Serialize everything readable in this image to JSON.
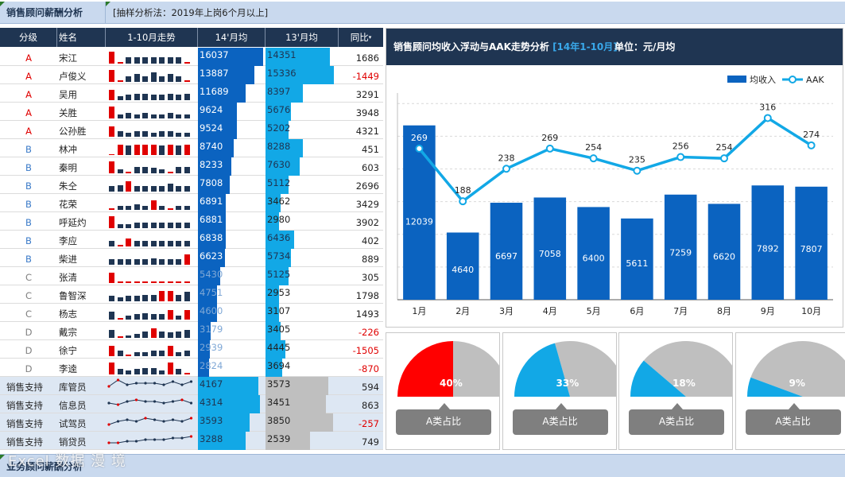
{
  "header": {
    "title": "销售顾问薪酬分析",
    "note": "[抽样分析法：2019年上岗6个月以上]"
  },
  "footer": {
    "title": "业务顾问薪酬分析",
    "watermark": "Excel 数据 漫 境"
  },
  "table": {
    "columns": [
      "分级",
      "姓名",
      "1-10月走势",
      "14'月均",
      "13'月均",
      "同比"
    ],
    "max_value": 16037,
    "rows": [
      {
        "level": "A",
        "name": "宋江",
        "v14": 16037,
        "v13": 14351,
        "yoy": 1686,
        "trend": [
          9,
          1,
          5,
          5,
          5,
          5,
          5,
          5,
          5,
          1
        ]
      },
      {
        "level": "A",
        "name": "卢俊义",
        "v14": 13887,
        "v13": 15336,
        "yoy": -1449,
        "trend": [
          9,
          1,
          4,
          6,
          4,
          7,
          4,
          6,
          4,
          1
        ]
      },
      {
        "level": "A",
        "name": "吴用",
        "v14": 11689,
        "v13": 8397,
        "yoy": 3291,
        "trend": [
          8,
          3,
          4,
          5,
          5,
          4,
          4,
          5,
          4,
          5
        ]
      },
      {
        "level": "A",
        "name": "关胜",
        "v14": 9624,
        "v13": 5676,
        "yoy": 3948,
        "trend": [
          9,
          3,
          4,
          3,
          4,
          3,
          3,
          4,
          3,
          3
        ]
      },
      {
        "level": "A",
        "name": "公孙胜",
        "v14": 9524,
        "v13": 5202,
        "yoy": 4321,
        "trend": [
          8,
          4,
          3,
          4,
          4,
          3,
          4,
          4,
          3,
          3
        ]
      },
      {
        "level": "B",
        "name": "林冲",
        "v14": 8740,
        "v13": 8288,
        "yoy": 451,
        "trend": [
          0,
          8,
          7,
          8,
          8,
          8,
          7,
          8,
          7,
          8
        ]
      },
      {
        "level": "B",
        "name": "秦明",
        "v14": 8233,
        "v13": 7630,
        "yoy": 603,
        "trend": [
          9,
          3,
          1,
          5,
          5,
          4,
          3,
          1,
          5,
          5
        ]
      },
      {
        "level": "B",
        "name": "朱仝",
        "v14": 7808,
        "v13": 5112,
        "yoy": 2696,
        "trend": [
          4,
          5,
          8,
          4,
          4,
          4,
          4,
          6,
          4,
          4
        ]
      },
      {
        "level": "B",
        "name": "花荣",
        "v14": 6891,
        "v13": 3462,
        "yoy": 3429,
        "trend": [
          1,
          3,
          3,
          4,
          3,
          7,
          3,
          1,
          3,
          3
        ]
      },
      {
        "level": "B",
        "name": "呼延灼",
        "v14": 6881,
        "v13": 2980,
        "yoy": 3902,
        "trend": [
          9,
          3,
          3,
          4,
          4,
          4,
          4,
          4,
          4,
          4
        ]
      },
      {
        "level": "B",
        "name": "李应",
        "v14": 6838,
        "v13": 6436,
        "yoy": 402,
        "trend": [
          4,
          1,
          6,
          4,
          4,
          4,
          4,
          4,
          4,
          4
        ]
      },
      {
        "level": "B",
        "name": "柴进",
        "v14": 6623,
        "v13": 5734,
        "yoy": 889,
        "trend": [
          4,
          4,
          4,
          4,
          4,
          5,
          4,
          4,
          4,
          8
        ]
      },
      {
        "level": "C",
        "name": "张清",
        "v14": 5430,
        "v13": 5125,
        "yoy": 305,
        "trend": [
          8,
          1,
          1,
          1,
          1,
          1,
          1,
          1,
          1,
          1
        ]
      },
      {
        "level": "C",
        "name": "鲁智深",
        "v14": 4751,
        "v13": 2953,
        "yoy": 1798,
        "trend": [
          4,
          3,
          4,
          4,
          5,
          5,
          8,
          8,
          5,
          7
        ]
      },
      {
        "level": "C",
        "name": "杨志",
        "v14": 4600,
        "v13": 3107,
        "yoy": 1493,
        "trend": [
          6,
          1,
          3,
          4,
          5,
          4,
          4,
          7,
          3,
          7
        ]
      },
      {
        "level": "D",
        "name": "戴宗",
        "v14": 3179,
        "v13": 3405,
        "yoy": -226,
        "trend": [
          6,
          1,
          2,
          3,
          5,
          7,
          5,
          4,
          5,
          6
        ]
      },
      {
        "level": "D",
        "name": "徐宁",
        "v14": 2939,
        "v13": 4445,
        "yoy": -1505,
        "trend": [
          8,
          4,
          1,
          3,
          3,
          4,
          4,
          8,
          3,
          4
        ]
      },
      {
        "level": "D",
        "name": "李逵",
        "v14": 2824,
        "v13": 3694,
        "yoy": -870,
        "trend": [
          9,
          4,
          3,
          4,
          5,
          5,
          3,
          9,
          4,
          1
        ]
      }
    ],
    "support": [
      {
        "dept": "销售支持",
        "role": "库管员",
        "v14": 4167,
        "v13": 3573,
        "yoy": 594,
        "line": [
          4,
          8,
          5,
          6,
          6,
          6,
          5,
          7,
          5,
          7
        ]
      },
      {
        "dept": "销售支持",
        "role": "信息员",
        "v14": 4314,
        "v13": 3451,
        "yoy": 863,
        "line": [
          5,
          4,
          6,
          7,
          6,
          6,
          5,
          6,
          7,
          5
        ]
      },
      {
        "dept": "销售支持",
        "role": "试驾员",
        "v14": 3593,
        "v13": 3850,
        "yoy": -257,
        "line": [
          3,
          5,
          6,
          5,
          7,
          6,
          5,
          6,
          5,
          7
        ]
      },
      {
        "dept": "销售支持",
        "role": "销贷员",
        "v14": 3288,
        "v13": 2539,
        "yoy": 749,
        "line": [
          3,
          3,
          4,
          4,
          5,
          5,
          5,
          6,
          6,
          7
        ]
      }
    ]
  },
  "chart_data": {
    "type": "bar",
    "title": "销售顾问均收入浮动与AAK走势分析",
    "title_highlight": "[14年1-10月]",
    "unit": "单位：元/月均",
    "categories": [
      "1月",
      "2月",
      "3月",
      "4月",
      "5月",
      "6月",
      "7月",
      "8月",
      "9月",
      "10月"
    ],
    "series": [
      {
        "name": "均收入",
        "type": "bar",
        "values": [
          12039,
          4640,
          6697,
          7058,
          6400,
          5611,
          7259,
          6620,
          7892,
          7807
        ]
      },
      {
        "name": "AAK",
        "type": "line",
        "values": [
          269,
          188,
          238,
          269,
          254,
          235,
          256,
          254,
          316,
          274
        ]
      }
    ],
    "legend": [
      "均收入",
      "AAK"
    ],
    "colors": {
      "bar": "#0b63c0",
      "line": "#12a8e6",
      "header": "#1f3552"
    }
  },
  "gauges": [
    {
      "label": "A类占比",
      "percent": 40,
      "text": "40%",
      "color": "#ff0000"
    },
    {
      "label": "A类占比",
      "percent": 33,
      "text": "33%",
      "color": "#12a8e6"
    },
    {
      "label": "A类占比",
      "percent": 18,
      "text": "18%",
      "color": "#12a8e6"
    },
    {
      "label": "A类占比",
      "percent": 9,
      "text": "9%",
      "color": "#12a8e6"
    }
  ]
}
